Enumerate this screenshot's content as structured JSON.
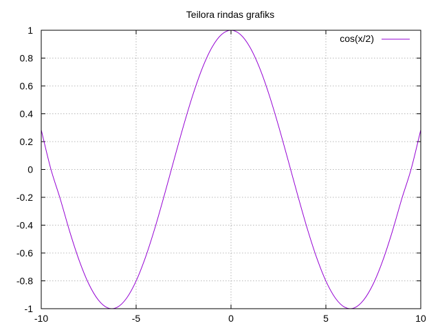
{
  "chart_data": {
    "type": "line",
    "title": "Teilora rindas grafiks",
    "xlabel": "",
    "ylabel": "",
    "xlim": [
      -10,
      10
    ],
    "ylim": [
      -1,
      1
    ],
    "grid": true,
    "legend_position": "top-right",
    "x_ticks": [
      -10,
      -5,
      0,
      5,
      10
    ],
    "x_tick_labels": [
      "-10",
      "-5",
      "0",
      "5",
      "10"
    ],
    "y_ticks": [
      -1,
      -0.8,
      -0.6,
      -0.4,
      -0.2,
      0,
      0.2,
      0.4,
      0.6,
      0.8,
      1
    ],
    "y_tick_labels": [
      "-1",
      "-0.8",
      "-0.6",
      "-0.4",
      "-0.2",
      "0",
      "0.2",
      "0.4",
      "0.6",
      "0.8",
      "1"
    ],
    "series": [
      {
        "name": "cos(x/2)",
        "color": "#9400d3",
        "x": [
          -10,
          -9.5,
          -9,
          -8.5,
          -8,
          -7.5,
          -7,
          -6.5,
          -6,
          -5.5,
          -5,
          -4.5,
          -4,
          -3.5,
          -3,
          -2.5,
          -2,
          -1.5,
          -1,
          -0.5,
          0,
          0.5,
          1,
          1.5,
          2,
          2.5,
          3,
          3.5,
          4,
          4.5,
          5,
          5.5,
          6,
          6.5,
          7,
          7.5,
          8,
          8.5,
          9,
          9.5,
          10
        ],
        "y": [
          0.284,
          0.006,
          -0.211,
          -0.446,
          -0.654,
          -0.821,
          -0.936,
          -0.994,
          -0.99,
          -0.924,
          -0.801,
          -0.628,
          -0.416,
          -0.178,
          0.071,
          0.315,
          0.54,
          0.732,
          0.878,
          0.969,
          1,
          0.969,
          0.878,
          0.732,
          0.54,
          0.315,
          0.071,
          -0.178,
          -0.416,
          -0.628,
          -0.801,
          -0.924,
          -0.99,
          -0.994,
          -0.936,
          -0.821,
          -0.654,
          -0.446,
          -0.211,
          0.006,
          0.284
        ]
      }
    ]
  }
}
